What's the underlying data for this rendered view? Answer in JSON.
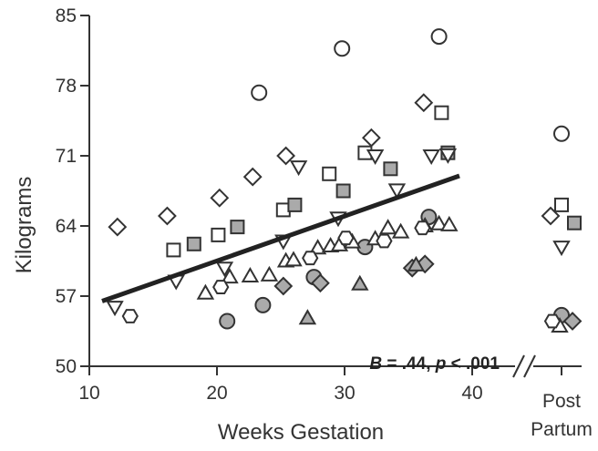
{
  "chart_data": {
    "type": "scatter",
    "xlabel": "Weeks Gestation",
    "ylabel": "Kilograms",
    "xlim": [
      10,
      42
    ],
    "ylim": [
      50,
      85
    ],
    "xticks": [
      "10",
      "20",
      "30",
      "40"
    ],
    "yticks": [
      "50",
      "57",
      "64",
      "71",
      "78",
      "85"
    ],
    "postpartum_label": [
      "Post",
      "Partum"
    ],
    "annotation": {
      "B": "B",
      "eq1": " = .44, ",
      "p": "p",
      "eq2": " < .001"
    },
    "grid": false,
    "legend": "none",
    "regression": {
      "x": [
        11,
        39
      ],
      "y": [
        56.5,
        69.0
      ]
    },
    "colors": {
      "axis": "#333333",
      "fill_open": "#ffffff",
      "fill_gray": "#aaaaaa",
      "line": "#222222"
    },
    "series": [
      {
        "marker": "circle-open",
        "points": [
          [
            23.3,
            77.3
          ],
          [
            29.8,
            81.7
          ],
          [
            37.4,
            82.9
          ]
        ],
        "postpartum": [
          73.2
        ]
      },
      {
        "marker": "circle-gray",
        "points": [
          [
            20.8,
            54.5
          ],
          [
            23.6,
            56.1
          ],
          [
            27.6,
            58.9
          ],
          [
            31.6,
            61.9
          ],
          [
            36.6,
            64.9
          ]
        ],
        "postpartum": [
          55.1
        ]
      },
      {
        "marker": "square-open",
        "points": [
          [
            16.6,
            61.6
          ],
          [
            20.1,
            63.1
          ],
          [
            25.2,
            65.6
          ],
          [
            28.8,
            69.2
          ],
          [
            31.6,
            71.3
          ],
          [
            37.6,
            75.3
          ]
        ],
        "postpartum": [
          66.1
        ]
      },
      {
        "marker": "square-gray",
        "points": [
          [
            18.2,
            62.2
          ],
          [
            21.6,
            63.9
          ],
          [
            26.1,
            66.1
          ],
          [
            29.9,
            67.5
          ],
          [
            33.6,
            69.7
          ],
          [
            38.1,
            71.3
          ]
        ],
        "postpartum": [
          64.3
        ]
      },
      {
        "marker": "diamond-open",
        "points": [
          [
            12.2,
            63.9
          ],
          [
            16.1,
            65.0
          ],
          [
            20.2,
            66.8
          ],
          [
            22.8,
            68.9
          ],
          [
            25.4,
            71.0
          ],
          [
            32.1,
            72.8
          ],
          [
            36.2,
            76.3
          ]
        ],
        "postpartum": [
          65.0
        ]
      },
      {
        "marker": "diamond-gray",
        "points": [
          [
            25.2,
            58.0
          ],
          [
            28.1,
            58.3
          ],
          [
            35.3,
            59.8
          ],
          [
            36.3,
            60.2
          ]
        ],
        "postpartum": [
          54.5
        ]
      },
      {
        "marker": "triangle-down-open",
        "points": [
          [
            12.0,
            55.9
          ],
          [
            16.8,
            58.5
          ],
          [
            20.6,
            59.8
          ],
          [
            25.2,
            62.5
          ],
          [
            26.4,
            69.9
          ],
          [
            29.5,
            64.8
          ],
          [
            32.4,
            71.0
          ],
          [
            34.1,
            67.6
          ],
          [
            36.8,
            71.0
          ],
          [
            38.1,
            71.1
          ]
        ],
        "postpartum": [
          61.9
        ]
      },
      {
        "marker": "triangle-up-open",
        "points": [
          [
            19.1,
            57.3
          ],
          [
            21.0,
            58.9
          ],
          [
            22.6,
            59.0
          ],
          [
            24.1,
            59.1
          ],
          [
            25.4,
            60.5
          ],
          [
            26.0,
            60.6
          ],
          [
            27.9,
            61.8
          ],
          [
            28.9,
            62.0
          ],
          [
            29.6,
            62.1
          ],
          [
            30.6,
            62.4
          ],
          [
            32.4,
            62.7
          ],
          [
            33.4,
            63.8
          ],
          [
            34.4,
            63.4
          ],
          [
            36.3,
            64.0
          ],
          [
            37.4,
            64.2
          ],
          [
            38.2,
            64.1
          ]
        ],
        "postpartum": [
          54.0
        ]
      },
      {
        "marker": "triangle-up-gray",
        "points": [
          [
            27.1,
            54.8
          ],
          [
            31.2,
            58.2
          ],
          [
            35.6,
            60.1
          ]
        ],
        "postpartum": []
      },
      {
        "marker": "hexagon-open",
        "points": [
          [
            13.2,
            55.0
          ],
          [
            20.3,
            57.9
          ],
          [
            27.3,
            60.8
          ],
          [
            30.1,
            62.8
          ],
          [
            33.1,
            62.5
          ],
          [
            36.1,
            63.8
          ]
        ],
        "postpartum": [
          54.5
        ]
      }
    ]
  }
}
